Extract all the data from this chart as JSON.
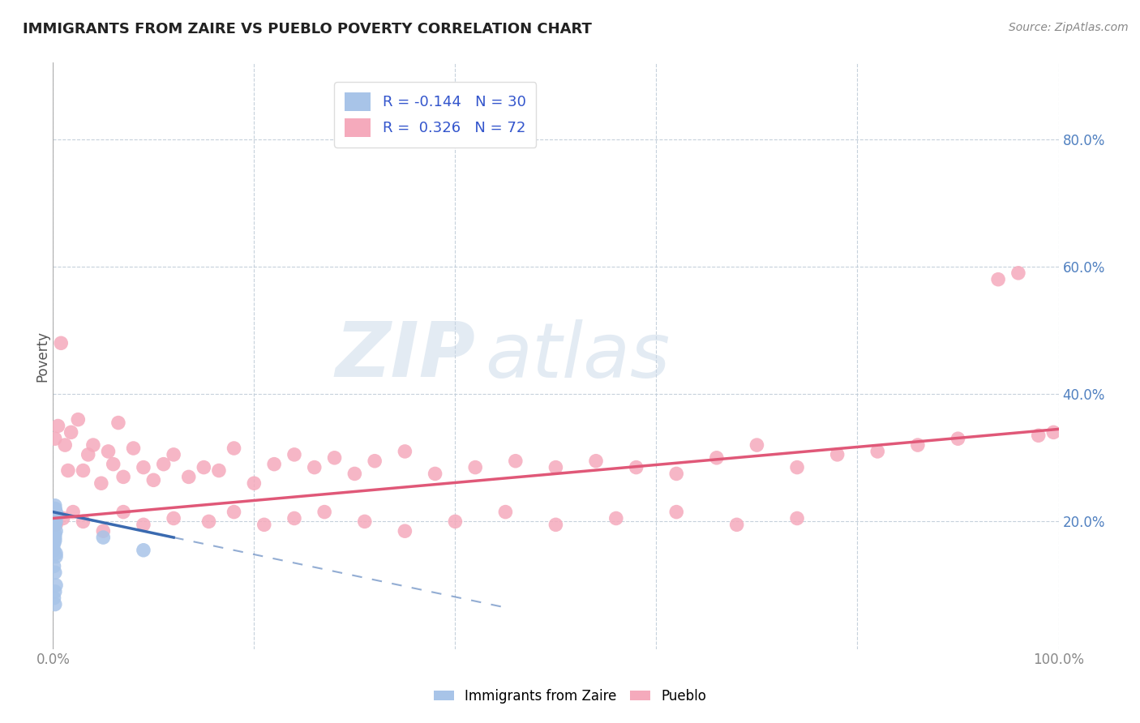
{
  "title": "IMMIGRANTS FROM ZAIRE VS PUEBLO POVERTY CORRELATION CHART",
  "source": "Source: ZipAtlas.com",
  "xlabel": "",
  "ylabel": "Poverty",
  "xlim": [
    0,
    1.0
  ],
  "ylim": [
    0,
    0.92
  ],
  "xticks": [
    0,
    0.2,
    0.4,
    0.6,
    0.8,
    1.0
  ],
  "xticklabels": [
    "0.0%",
    "",
    "",
    "",
    "",
    "100.0%"
  ],
  "yticks": [
    0.2,
    0.4,
    0.6,
    0.8
  ],
  "yticklabels": [
    "20.0%",
    "40.0%",
    "60.0%",
    "80.0%"
  ],
  "r_blue": -0.144,
  "n_blue": 30,
  "r_pink": 0.326,
  "n_pink": 72,
  "blue_color": "#a8c4e8",
  "pink_color": "#f5aabc",
  "blue_line_color": "#3a6ab0",
  "pink_line_color": "#e05878",
  "watermark_zip": "ZIP",
  "watermark_atlas": "atlas",
  "background_color": "#ffffff",
  "grid_color": "#c0ccd8",
  "title_color": "#222222",
  "axis_label_color": "#555555",
  "tick_color": "#888888",
  "right_tick_color": "#5080c0",
  "legend_color": "#3355cc",
  "blue_scatter_x": [
    0.001,
    0.002,
    0.001,
    0.003,
    0.002,
    0.001,
    0.003,
    0.002,
    0.001,
    0.002,
    0.003,
    0.001,
    0.002,
    0.004,
    0.002,
    0.001,
    0.003,
    0.002,
    0.001,
    0.002,
    0.003,
    0.002,
    0.001,
    0.002,
    0.003,
    0.002,
    0.001,
    0.05,
    0.09,
    0.003
  ],
  "blue_scatter_y": [
    0.215,
    0.225,
    0.2,
    0.21,
    0.22,
    0.205,
    0.215,
    0.195,
    0.21,
    0.22,
    0.185,
    0.205,
    0.215,
    0.21,
    0.175,
    0.165,
    0.2,
    0.17,
    0.155,
    0.18,
    0.15,
    0.09,
    0.08,
    0.07,
    0.1,
    0.12,
    0.13,
    0.175,
    0.155,
    0.145
  ],
  "pink_scatter_x": [
    0.002,
    0.005,
    0.008,
    0.012,
    0.015,
    0.018,
    0.025,
    0.03,
    0.035,
    0.04,
    0.048,
    0.055,
    0.06,
    0.065,
    0.07,
    0.08,
    0.09,
    0.1,
    0.11,
    0.12,
    0.135,
    0.15,
    0.165,
    0.18,
    0.2,
    0.22,
    0.24,
    0.26,
    0.28,
    0.3,
    0.32,
    0.35,
    0.38,
    0.42,
    0.46,
    0.5,
    0.54,
    0.58,
    0.62,
    0.66,
    0.7,
    0.74,
    0.78,
    0.82,
    0.86,
    0.9,
    0.94,
    0.96,
    0.98,
    0.995,
    0.003,
    0.01,
    0.02,
    0.03,
    0.05,
    0.07,
    0.09,
    0.12,
    0.155,
    0.18,
    0.21,
    0.24,
    0.27,
    0.31,
    0.35,
    0.4,
    0.45,
    0.5,
    0.56,
    0.62,
    0.68,
    0.74
  ],
  "pink_scatter_y": [
    0.33,
    0.35,
    0.48,
    0.32,
    0.28,
    0.34,
    0.36,
    0.28,
    0.305,
    0.32,
    0.26,
    0.31,
    0.29,
    0.355,
    0.27,
    0.315,
    0.285,
    0.265,
    0.29,
    0.305,
    0.27,
    0.285,
    0.28,
    0.315,
    0.26,
    0.29,
    0.305,
    0.285,
    0.3,
    0.275,
    0.295,
    0.31,
    0.275,
    0.285,
    0.295,
    0.285,
    0.295,
    0.285,
    0.275,
    0.3,
    0.32,
    0.285,
    0.305,
    0.31,
    0.32,
    0.33,
    0.58,
    0.59,
    0.335,
    0.34,
    0.195,
    0.205,
    0.215,
    0.2,
    0.185,
    0.215,
    0.195,
    0.205,
    0.2,
    0.215,
    0.195,
    0.205,
    0.215,
    0.2,
    0.185,
    0.2,
    0.215,
    0.195,
    0.205,
    0.215,
    0.195,
    0.205
  ],
  "blue_trend_x0": 0.0,
  "blue_trend_x1": 0.12,
  "blue_trend_xdash": 0.45,
  "blue_trend_y0": 0.215,
  "blue_trend_y1": 0.175,
  "pink_trend_x0": 0.0,
  "pink_trend_x1": 1.0,
  "pink_trend_y0": 0.205,
  "pink_trend_y1": 0.345
}
